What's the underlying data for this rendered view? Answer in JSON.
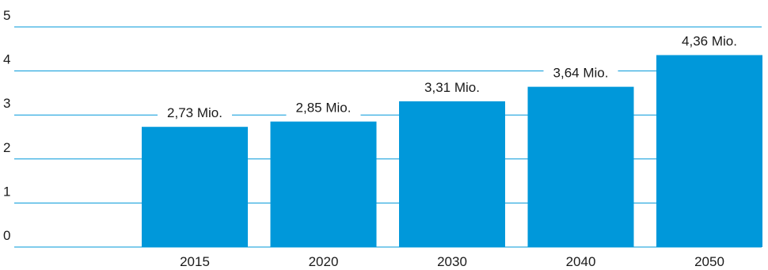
{
  "colors": {
    "bar": "#0098DA",
    "grid": "#0098DA",
    "text": "#1a1a1a",
    "label_bg": "#ffffff"
  },
  "chart_data": {
    "type": "bar",
    "categories": [
      "2015",
      "2020",
      "2030",
      "2040",
      "2050"
    ],
    "values": [
      2.73,
      2.85,
      3.31,
      3.64,
      4.36
    ],
    "data_labels": [
      "2,73 Mio.",
      "2,85 Mio.",
      "3,31 Mio.",
      "3,64 Mio.",
      "4,36 Mio."
    ],
    "y_ticks": [
      "0",
      "1",
      "2",
      "3",
      "4",
      "5"
    ],
    "ylim": [
      0,
      5
    ],
    "grid": true,
    "legend": "none"
  }
}
